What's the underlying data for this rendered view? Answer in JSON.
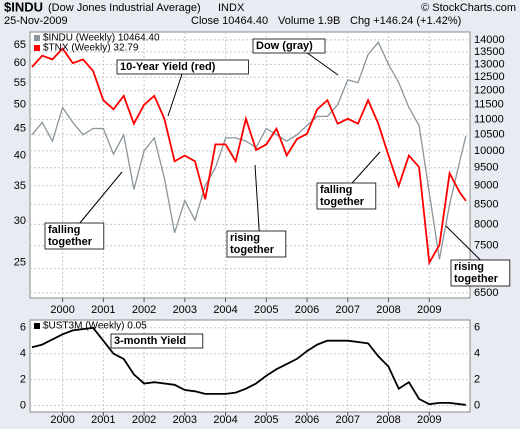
{
  "header": {
    "symbol": "$INDU",
    "name": "(Dow Jones Industrial Average)",
    "exchange": "INDX",
    "credit": "© StockCharts.com",
    "date": "25-Nov-2009",
    "quote": [
      "Close 10464.40",
      "Volume 1.9B",
      "Chg +146.24 (+1.42%)"
    ]
  },
  "chart_data": [
    {
      "type": "line",
      "log_scale": true,
      "grid": true,
      "x": [
        1999.25,
        1999.5,
        1999.75,
        2000,
        2000.25,
        2000.5,
        2000.75,
        2001,
        2001.25,
        2001.5,
        2001.75,
        2002,
        2002.25,
        2002.5,
        2002.75,
        2003,
        2003.25,
        2003.5,
        2003.75,
        2004,
        2004.25,
        2004.5,
        2004.75,
        2005,
        2005.25,
        2005.5,
        2005.75,
        2006,
        2006.25,
        2006.5,
        2006.75,
        2007,
        2007.25,
        2007.5,
        2007.75,
        2008,
        2008.25,
        2008.5,
        2008.75,
        2009,
        2009.25,
        2009.5,
        2009.75,
        2009.9
      ],
      "xlim": [
        1999.2,
        2010.0
      ],
      "xticks": [
        2000,
        2001,
        2002,
        2003,
        2004,
        2005,
        2006,
        2007,
        2008,
        2009
      ],
      "ylim": [
        21.4,
        68.8
      ],
      "yticks": [
        25,
        30,
        35,
        40,
        45,
        50,
        55,
        60,
        65
      ],
      "y2lim": [
        6400,
        14340
      ],
      "y2ticks": [
        6500,
        7000,
        7500,
        8000,
        8500,
        9000,
        9500,
        10000,
        10500,
        11000,
        11500,
        12000,
        12500,
        13000,
        13500,
        14000
      ],
      "series": [
        {
          "name": "$INDU (Weekly) 10464.40",
          "color": "#8a959c",
          "axis": "y2",
          "values": [
            10500,
            10900,
            10300,
            11400,
            10900,
            10500,
            10700,
            10700,
            9900,
            10500,
            8900,
            10000,
            10400,
            9200,
            7800,
            8600,
            8100,
            9000,
            9500,
            10400,
            10400,
            10300,
            10100,
            10700,
            10500,
            10300,
            10500,
            10800,
            11100,
            11100,
            11500,
            12400,
            12300,
            13400,
            13900,
            13000,
            12300,
            11400,
            10800,
            8800,
            7200,
            8500,
            9700,
            10464.4
          ]
        },
        {
          "name": "$TNX (Weekly) 32.79",
          "color": "#ff0000",
          "values": [
            59,
            62,
            61,
            64,
            60,
            61,
            58,
            51,
            49,
            52,
            46,
            50,
            52,
            47,
            39,
            40,
            39,
            33,
            42,
            42,
            39,
            47,
            41,
            42,
            45,
            40,
            43,
            44,
            49,
            51,
            46,
            47,
            46,
            51,
            46,
            40,
            35,
            40,
            38,
            25,
            27,
            37,
            34,
            32.79
          ]
        }
      ],
      "annotations": [
        {
          "lines": [
            "10-Year Yield (red)"
          ]
        },
        {
          "lines": [
            "Dow (gray)"
          ]
        },
        {
          "lines": [
            "falling",
            "together"
          ]
        },
        {
          "lines": [
            "rising",
            "together"
          ]
        },
        {
          "lines": [
            "falling",
            "together"
          ]
        },
        {
          "lines": [
            "rising",
            "together"
          ]
        }
      ]
    },
    {
      "type": "line",
      "grid": true,
      "x": [
        1999.25,
        1999.5,
        1999.75,
        2000,
        2000.25,
        2000.5,
        2000.75,
        2001,
        2001.25,
        2001.5,
        2001.75,
        2002,
        2002.25,
        2002.5,
        2002.75,
        2003,
        2003.25,
        2003.5,
        2003.75,
        2004,
        2004.25,
        2004.5,
        2004.75,
        2005,
        2005.25,
        2005.5,
        2005.75,
        2006,
        2006.25,
        2006.5,
        2006.75,
        2007,
        2007.25,
        2007.5,
        2007.75,
        2008,
        2008.25,
        2008.5,
        2008.75,
        2009,
        2009.25,
        2009.5,
        2009.75,
        2009.9
      ],
      "xlim": [
        1999.2,
        2010.0
      ],
      "xticks": [
        2000,
        2001,
        2002,
        2003,
        2004,
        2005,
        2006,
        2007,
        2008,
        2009
      ],
      "ylim": [
        -0.5,
        6.6
      ],
      "yticks": [
        0,
        2,
        4,
        6
      ],
      "series": [
        {
          "name": "$UST3M (Weekly) 0.05",
          "color": "#000000",
          "values": [
            4.5,
            4.7,
            5.1,
            5.5,
            5.8,
            5.9,
            6.0,
            5.0,
            4.0,
            3.6,
            2.4,
            1.7,
            1.8,
            1.7,
            1.6,
            1.2,
            1.1,
            0.9,
            0.9,
            0.9,
            1.0,
            1.3,
            1.7,
            2.3,
            2.8,
            3.2,
            3.6,
            4.2,
            4.7,
            5.0,
            5.0,
            5.0,
            4.9,
            4.8,
            3.8,
            3.0,
            1.3,
            1.8,
            0.5,
            0.1,
            0.2,
            0.2,
            0.1,
            0.05
          ]
        }
      ],
      "annotations": [
        {
          "lines": [
            "3-month Yield"
          ]
        }
      ]
    }
  ]
}
